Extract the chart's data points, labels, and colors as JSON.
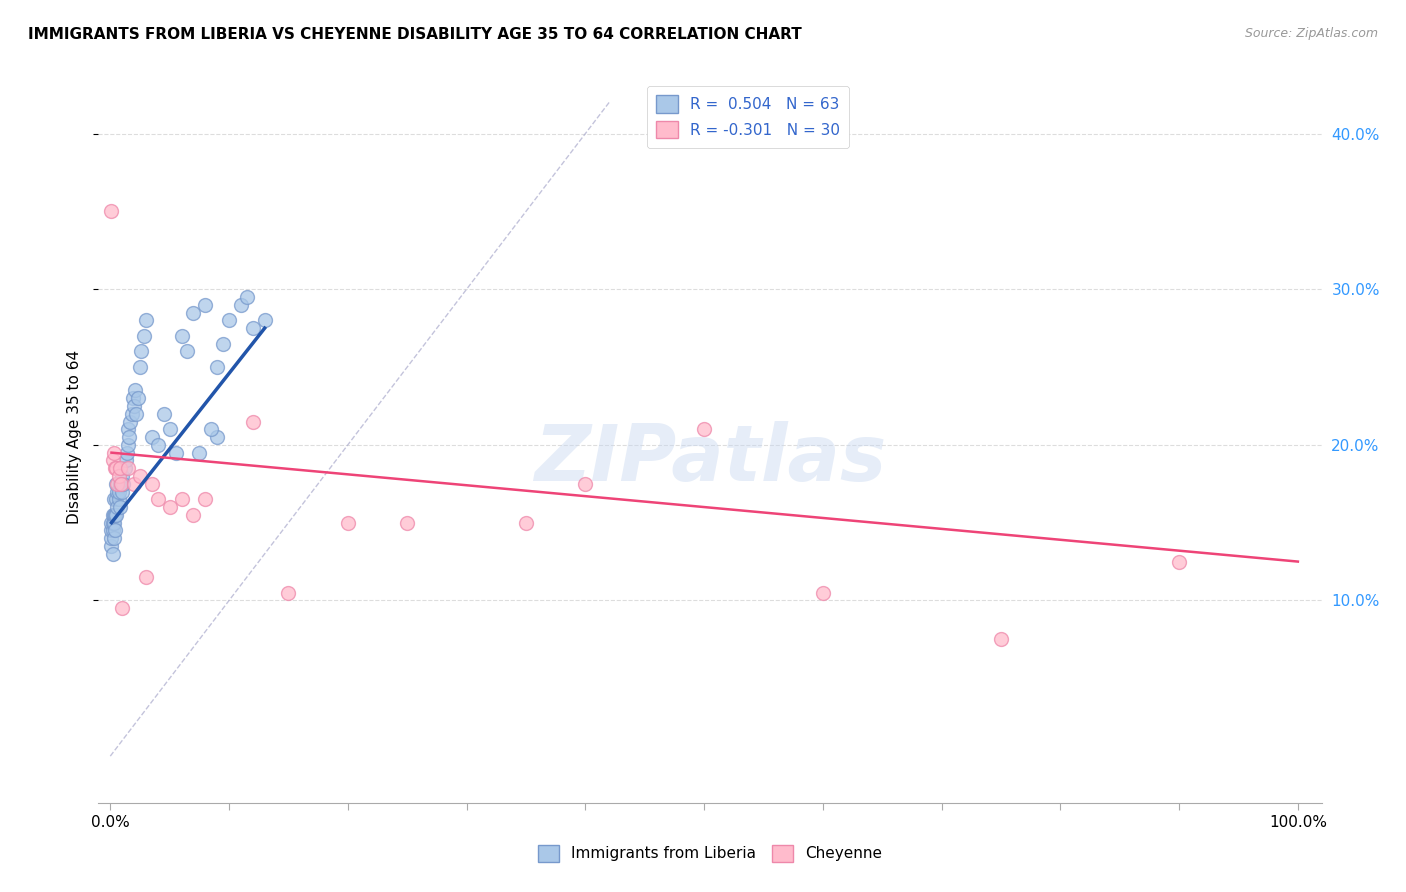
{
  "title": "IMMIGRANTS FROM LIBERIA VS CHEYENNE DISABILITY AGE 35 TO 64 CORRELATION CHART",
  "source": "Source: ZipAtlas.com",
  "ylabel": "Disability Age 35 to 64",
  "ytick_labels": [
    "10.0%",
    "20.0%",
    "30.0%",
    "40.0%"
  ],
  "ytick_positions": [
    10.0,
    20.0,
    30.0,
    40.0
  ],
  "xlim": [
    -1.0,
    102.0
  ],
  "ylim": [
    -3.0,
    44.0
  ],
  "watermark": "ZIPatlas",
  "blue_x": [
    0.1,
    0.1,
    0.1,
    0.1,
    0.2,
    0.2,
    0.2,
    0.2,
    0.3,
    0.3,
    0.3,
    0.3,
    0.4,
    0.4,
    0.5,
    0.5,
    0.5,
    0.6,
    0.6,
    0.7,
    0.7,
    0.8,
    0.8,
    0.9,
    1.0,
    1.0,
    1.1,
    1.2,
    1.3,
    1.4,
    1.5,
    1.5,
    1.6,
    1.7,
    1.8,
    1.9,
    2.0,
    2.1,
    2.2,
    2.3,
    2.5,
    2.6,
    2.8,
    3.0,
    3.5,
    4.0,
    4.5,
    5.0,
    5.5,
    6.0,
    6.5,
    7.0,
    8.0,
    9.0,
    9.5,
    10.0,
    11.0,
    12.0,
    11.5,
    13.0,
    9.0,
    8.5,
    7.5
  ],
  "blue_y": [
    13.5,
    14.0,
    14.5,
    15.0,
    13.0,
    14.5,
    15.0,
    15.5,
    14.0,
    15.0,
    15.5,
    16.5,
    14.5,
    15.5,
    15.5,
    16.5,
    17.5,
    16.0,
    17.0,
    16.5,
    17.0,
    17.5,
    16.0,
    17.5,
    17.0,
    18.0,
    17.5,
    18.5,
    19.0,
    19.5,
    20.0,
    21.0,
    20.5,
    21.5,
    22.0,
    23.0,
    22.5,
    23.5,
    22.0,
    23.0,
    25.0,
    26.0,
    27.0,
    28.0,
    20.5,
    20.0,
    22.0,
    21.0,
    19.5,
    27.0,
    26.0,
    28.5,
    29.0,
    25.0,
    26.5,
    28.0,
    29.0,
    27.5,
    29.5,
    28.0,
    20.5,
    21.0,
    19.5
  ],
  "pink_x": [
    0.1,
    0.2,
    0.3,
    0.4,
    0.5,
    0.6,
    0.7,
    0.8,
    0.9,
    1.0,
    1.5,
    2.0,
    2.5,
    3.0,
    3.5,
    4.0,
    5.0,
    6.0,
    7.0,
    8.0,
    12.0,
    15.0,
    20.0,
    25.0,
    35.0,
    40.0,
    50.0,
    60.0,
    75.0,
    90.0
  ],
  "pink_y": [
    35.0,
    19.0,
    19.5,
    18.5,
    18.5,
    17.5,
    18.0,
    18.5,
    17.5,
    9.5,
    18.5,
    17.5,
    18.0,
    11.5,
    17.5,
    16.5,
    16.0,
    16.5,
    15.5,
    16.5,
    21.5,
    10.5,
    15.0,
    15.0,
    15.0,
    17.5,
    21.0,
    10.5,
    7.5,
    12.5
  ],
  "blue_line_x": [
    0.1,
    13.0
  ],
  "blue_line_y": [
    15.0,
    27.5
  ],
  "pink_line_x": [
    0.1,
    100.0
  ],
  "pink_line_y": [
    19.5,
    12.5
  ],
  "diag_line_x": [
    0.0,
    42.0
  ],
  "diag_line_y": [
    0.0,
    42.0
  ],
  "dot_size": 100,
  "blue_dot_color": "#aac8e8",
  "blue_dot_edge": "#7799cc",
  "pink_dot_color": "#ffbbcc",
  "pink_dot_edge": "#ee88aa",
  "blue_line_color": "#2255aa",
  "pink_line_color": "#ee4477",
  "diag_line_color": "#aaaacc"
}
